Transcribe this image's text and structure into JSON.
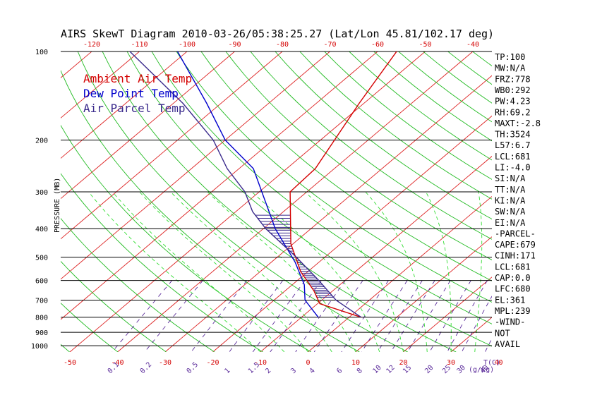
{
  "chart_data": {
    "type": "skewt",
    "title": "AIRS SkewT Diagram 2010-03-26/05:38:25.27 (Lat/Lon 45.81/102.17 deg)",
    "ylabel": "PRESSURE (MB)",
    "xlabel_bottom_unit": "T(C)",
    "mixing_ratio_unit": "(g/kg)",
    "top_temperature_ticks": [
      "-120",
      "-110",
      "-100",
      "-90",
      "-80",
      "-70",
      "-60",
      "-50",
      "-40"
    ],
    "bottom_temperature_ticks": [
      "-50",
      "-40",
      "-30",
      "-20",
      "-10",
      "0",
      "10",
      "20",
      "30",
      "40"
    ],
    "mixing_ratio_labels": [
      "0.1",
      "0.2",
      "0.5",
      "1",
      "1.5",
      "2",
      "3",
      "4",
      "6",
      "8",
      "10",
      "12",
      "15",
      "20",
      "25",
      "30",
      "40"
    ],
    "pressure_ticks": [
      "100",
      "200",
      "300",
      "400",
      "500",
      "600",
      "700",
      "800",
      "900",
      "1000"
    ],
    "pressure_levels_mb": [
      100,
      200,
      300,
      400,
      500,
      600,
      700,
      800,
      900,
      1000
    ],
    "legend": [
      {
        "label": "Ambient Air Temp",
        "color": "#d40000"
      },
      {
        "label": "Dew Point Temp",
        "color": "#0000cc"
      },
      {
        "label": "Air Parcel Temp",
        "color": "#3a2a8c"
      }
    ],
    "colors": {
      "isotherm": "#dd2222",
      "dry_adiabat": "#22bb22",
      "moist_adiabat": "#33dd33",
      "mixing_ratio": "#5a2a9a",
      "isobar": "#000000",
      "cape_hatch": "#3a2a8c"
    },
    "series": [
      {
        "name": "Ambient Air Temp",
        "pressure_mb": [
          800,
          720,
          650,
          560,
          450,
          300,
          250,
          150,
          100
        ],
        "temp_c": [
          2.5,
          -9.5,
          -14.0,
          -21.5,
          -30.5,
          -43.5,
          -44.0,
          -51.0,
          -56.0
        ]
      },
      {
        "name": "Dew Point Temp",
        "pressure_mb": [
          800,
          700,
          620,
          520,
          400,
          250,
          200,
          150,
          100
        ],
        "temp_c": [
          -6.5,
          -13.5,
          -17.5,
          -25.0,
          -37.5,
          -57.0,
          -70.0,
          -83.0,
          -102.0
        ]
      },
      {
        "name": "Air Parcel Temp",
        "pressure_mb": [
          800,
          700,
          600,
          500,
          400,
          350,
          300,
          250,
          200,
          150,
          100
        ],
        "temp_c": [
          2.5,
          -7.0,
          -15.5,
          -26.0,
          -39.5,
          -46.5,
          -53.0,
          -62.5,
          -72.5,
          -88.0,
          -112.0
        ]
      }
    ],
    "indices": [
      "TP:100",
      "MW:N/A",
      "FRZ:778",
      "WB0:292",
      "PW:4.23",
      "RH:69.2",
      "MAXT:-2.8",
      "TH:3524",
      "L57:6.7",
      "LCL:681",
      "LI:-4.0",
      "SI:N/A",
      "TT:N/A",
      "KI:N/A",
      "SW:N/A",
      "EI:N/A",
      "-PARCEL-",
      "CAPE:679",
      "CINH:171",
      "LCL:681",
      "CAP:0.0",
      "LFC:680",
      "EL:361",
      "MPL:239",
      "-WIND-",
      "NOT",
      "AVAIL"
    ]
  }
}
